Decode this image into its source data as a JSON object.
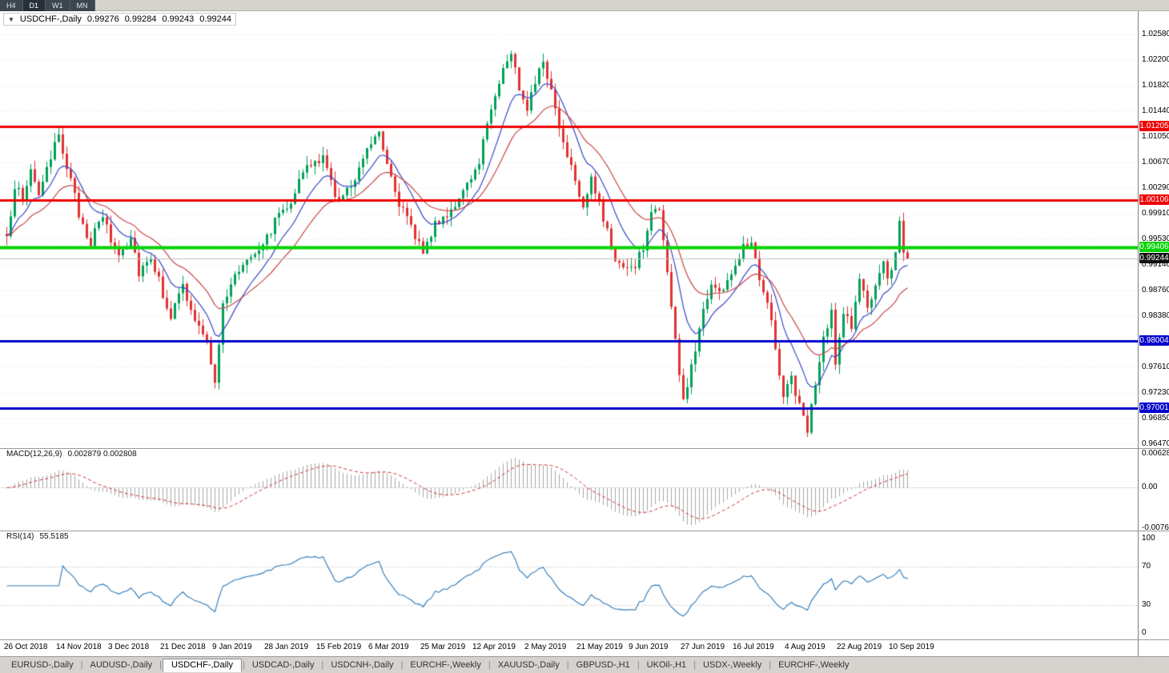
{
  "toolbar": {
    "timeframes": [
      {
        "label": "H4",
        "active": false
      },
      {
        "label": "D1",
        "active": true
      },
      {
        "label": "W1",
        "active": false
      },
      {
        "label": "MN",
        "active": false
      }
    ]
  },
  "chart_header": {
    "dropdown_icon": "▼",
    "symbol": "USDCHF-,Daily",
    "open": "0.99276",
    "high": "0.99284",
    "low": "0.99243",
    "close": "0.99244"
  },
  "colors": {
    "bull": "#00a05a",
    "bear": "#e03232",
    "ma_fast": "#3a49c8",
    "ma_slow": "#c84848",
    "macd_bar": "#a8a8a8",
    "macd_signal": "#cc3333",
    "rsi_line": "#2a78b8",
    "grid": "#ececec"
  },
  "chart_data": [
    {
      "type": "candlestick",
      "symbol": "USDCHF",
      "timeframe": "Daily",
      "ylim": [
        0.9641,
        1.02926
      ],
      "y_ticks": [
        "1.02580",
        "1.02200",
        "1.01820",
        "1.01440",
        "1.01050",
        "1.00670",
        "1.00290",
        "0.99910",
        "0.99530",
        "0.99140",
        "0.98760",
        "0.98380",
        "0.97610",
        "0.97230",
        "0.96850",
        "0.96470"
      ],
      "price_lines": [
        {
          "label": "1.01205",
          "value": 1.01205,
          "color": "#ee0000",
          "width": 3,
          "role": "resistance"
        },
        {
          "label": "1.00106",
          "value": 1.00106,
          "color": "#ee0000",
          "width": 3,
          "role": "resistance"
        },
        {
          "label": "0.99406",
          "value": 0.99406,
          "color": "#00d400",
          "width": 4,
          "role": "support"
        },
        {
          "label": "0.99244",
          "value": 0.99244,
          "color": "#111111",
          "width": 1,
          "role": "current-price",
          "line_color": "#c0c0c0"
        },
        {
          "label": "0.98004",
          "value": 0.98004,
          "color": "#0000cc",
          "width": 3,
          "role": "support"
        },
        {
          "label": "0.97001",
          "value": 0.97001,
          "color": "#0000cc",
          "width": 3,
          "role": "support"
        }
      ],
      "x_labels": [
        "26 Oct 2018",
        "14 Nov 2018",
        "3 Dec 2018",
        "21 Dec 2018",
        "9 Jan 2019",
        "28 Jan 2019",
        "15 Feb 2019",
        "6 Mar 2019",
        "25 Mar 2019",
        "12 Apr 2019",
        "2 May 2019",
        "21 May 2019",
        "9 Jun 2019",
        "27 Jun 2019",
        "16 Jul 2019",
        "4 Aug 2019",
        "22 Aug 2019",
        "10 Sep 2019"
      ],
      "candles_per_label": 13,
      "candle_count": 226,
      "moving_averages": [
        {
          "period": 10,
          "color_key": "ma_fast"
        },
        {
          "period": 22,
          "color_key": "ma_slow"
        }
      ],
      "close_waypoints": [
        [
          0,
          0.995
        ],
        [
          2,
          1.0035
        ],
        [
          4,
          1.001
        ],
        [
          6,
          1.0058
        ],
        [
          8,
          1.0022
        ],
        [
          11,
          1.0068
        ],
        [
          13,
          1.0112
        ],
        [
          15,
          1.0062
        ],
        [
          18,
          0.999
        ],
        [
          21,
          0.9948
        ],
        [
          24,
          0.9988
        ],
        [
          26,
          0.995
        ],
        [
          28,
          0.993
        ],
        [
          31,
          0.9958
        ],
        [
          33,
          0.9905
        ],
        [
          36,
          0.9928
        ],
        [
          39,
          0.9872
        ],
        [
          41,
          0.9838
        ],
        [
          44,
          0.9882
        ],
        [
          46,
          0.9845
        ],
        [
          48,
          0.982
        ],
        [
          50,
          0.9795
        ],
        [
          52,
          0.9745
        ],
        [
          54,
          0.9852
        ],
        [
          57,
          0.9898
        ],
        [
          60,
          0.9925
        ],
        [
          63,
          0.9942
        ],
        [
          65,
          0.9955
        ],
        [
          68,
          0.9992
        ],
        [
          71,
          1.0012
        ],
        [
          74,
          1.0052
        ],
        [
          77,
          1.0068
        ],
        [
          79,
          1.0072
        ],
        [
          81,
          1.0038
        ],
        [
          83,
          1.0008
        ],
        [
          86,
          1.0032
        ],
        [
          89,
          1.0078
        ],
        [
          91,
          1.0098
        ],
        [
          93,
          1.0118
        ],
        [
          95,
          1.0068
        ],
        [
          98,
          1.0008
        ],
        [
          101,
          0.9968
        ],
        [
          104,
          0.9938
        ],
        [
          107,
          0.9972
        ],
        [
          110,
          0.9992
        ],
        [
          113,
          1.0012
        ],
        [
          116,
          1.0038
        ],
        [
          118,
          1.0072
        ],
        [
          120,
          1.0125
        ],
        [
          122,
          1.0172
        ],
        [
          124,
          1.0205
        ],
        [
          126,
          1.0232
        ],
        [
          128,
          1.0178
        ],
        [
          130,
          1.0152
        ],
        [
          132,
          1.0192
        ],
        [
          134,
          1.0212
        ],
        [
          136,
          1.0178
        ],
        [
          138,
          1.0118
        ],
        [
          140,
          1.0082
        ],
        [
          142,
          1.0045
        ],
        [
          144,
          1.0002
        ],
        [
          146,
          1.0048
        ],
        [
          148,
          1.0002
        ],
        [
          151,
          0.9942
        ],
        [
          153,
          0.9912
        ],
        [
          156,
          0.9905
        ],
        [
          159,
          0.9938
        ],
        [
          161,
          0.9992
        ],
        [
          163,
          1.0002
        ],
        [
          164,
          0.9948
        ],
        [
          166,
          0.9852
        ],
        [
          168,
          0.9752
        ],
        [
          169,
          0.9708
        ],
        [
          171,
          0.9762
        ],
        [
          174,
          0.9848
        ],
        [
          176,
          0.9888
        ],
        [
          178,
          0.9872
        ],
        [
          180,
          0.9892
        ],
        [
          182,
          0.9908
        ],
        [
          184,
          0.9948
        ],
        [
          186,
          0.9952
        ],
        [
          188,
          0.9898
        ],
        [
          190,
          0.9862
        ],
        [
          192,
          0.9792
        ],
        [
          194,
          0.9718
        ],
        [
          196,
          0.9748
        ],
        [
          198,
          0.9702
        ],
        [
          200,
          0.9672
        ],
        [
          202,
          0.9732
        ],
        [
          204,
          0.9802
        ],
        [
          206,
          0.9842
        ],
        [
          207,
          0.9762
        ],
        [
          209,
          0.9848
        ],
        [
          211,
          0.9822
        ],
        [
          213,
          0.9892
        ],
        [
          215,
          0.9852
        ],
        [
          217,
          0.9878
        ],
        [
          219,
          0.9912
        ],
        [
          220,
          0.9895
        ],
        [
          222,
          0.9932
        ],
        [
          223,
          0.9988
        ],
        [
          224,
          0.9938
        ],
        [
          225,
          0.9924
        ]
      ]
    },
    {
      "type": "macd",
      "title": "MACD(12,26,9)",
      "current_values": "0.002879 0.002808",
      "fast": 12,
      "slow": 26,
      "signal": 9,
      "y_ticks": [
        "0.006286",
        "0.00",
        "-0.00762"
      ],
      "ylim": [
        -0.008,
        0.0074
      ]
    },
    {
      "type": "rsi",
      "title": "RSI(14)",
      "current_value": "55.5185",
      "period": 14,
      "levels": [
        70,
        30
      ],
      "y_ticks": [
        "100",
        "70",
        "30",
        "0"
      ],
      "ylim": [
        0,
        100
      ]
    }
  ],
  "tabs": [
    {
      "label": "EURUSD-,Daily",
      "active": false
    },
    {
      "label": "AUDUSD-,Daily",
      "active": false
    },
    {
      "label": "USDCHF-,Daily",
      "active": true
    },
    {
      "label": "USDCAD-,Daily",
      "active": false
    },
    {
      "label": "USDCNH-,Daily",
      "active": false
    },
    {
      "label": "EURCHF-,Weekly",
      "active": false
    },
    {
      "label": "XAUUSD-,Daily",
      "active": false
    },
    {
      "label": "GBPUSD-,H1",
      "active": false
    },
    {
      "label": "UKOil-,H1",
      "active": false
    },
    {
      "label": "USDX-,Weekly",
      "active": false
    },
    {
      "label": "EURCHF-,Weekly",
      "active": false
    }
  ]
}
